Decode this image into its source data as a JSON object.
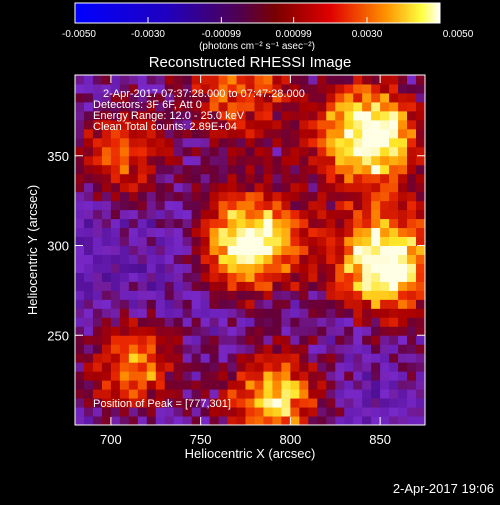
{
  "chart_data": {
    "type": "heatmap",
    "title": "Reconstructed RHESSI Image",
    "xlabel": "Heliocentric X (arcsec)",
    "ylabel": "Heliocentric Y (arcsec)",
    "xlim": [
      680,
      875
    ],
    "ylim": [
      200,
      395
    ],
    "x_ticks": [
      {
        "value": 700,
        "label": "700"
      },
      {
        "value": 750,
        "label": "750"
      },
      {
        "value": 800,
        "label": "800"
      },
      {
        "value": 850,
        "label": "850"
      }
    ],
    "y_ticks": [
      {
        "value": 250,
        "label": "250"
      },
      {
        "value": 300,
        "label": "300"
      },
      {
        "value": 350,
        "label": "350"
      }
    ],
    "colorbar": {
      "range": [
        -0.005,
        0.005
      ],
      "tick_labels": [
        "-0.0050",
        "-0.0030",
        "-0.00099",
        "0.00099",
        "0.0030",
        "0.0050"
      ],
      "units": "(photons cm⁻² s⁻¹ asec⁻²)"
    },
    "info": {
      "time_range": "2-Apr-2017 07:37:28.000 to 07:47:28.000",
      "detectors": "Detectors: 3F 6F, Att 0",
      "energy": "Energy Range: 12.0 - 25.0 keV",
      "clean": "Clean     Total counts: 2.89E+04",
      "peak": "Position of Peak = [777,301]"
    },
    "sources": [
      {
        "x": 777,
        "y": 301,
        "intensity": 1.0
      },
      {
        "x": 845,
        "y": 362,
        "intensity": 0.95
      },
      {
        "x": 852,
        "y": 290,
        "intensity": 0.9
      },
      {
        "x": 790,
        "y": 215,
        "intensity": 0.85
      },
      {
        "x": 712,
        "y": 232,
        "intensity": 0.7
      },
      {
        "x": 705,
        "y": 350,
        "intensity": 0.55
      },
      {
        "x": 772,
        "y": 390,
        "intensity": 0.5
      }
    ],
    "peak": {
      "x": 777,
      "y": 301
    },
    "colormap": "rainbow-like diverging (blue-purple-red-yellow-white)"
  },
  "footer_date": "2-Apr-2017 19:06"
}
